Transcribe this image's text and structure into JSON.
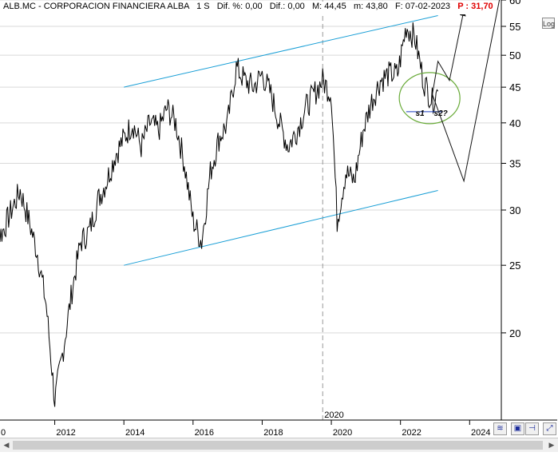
{
  "header": {
    "ticker": "ALB.MC - CORPORACION FINANCIERA ALBA",
    "timeframe": "1 S",
    "dif_pct": "Dif. %: 0,00",
    "dif": "Dif.: 0,00",
    "max": "M: 44,45",
    "min": "m: 43,80",
    "date": "F: 07-02-2023",
    "price": "P : 31,70",
    "price_color": "#e00000"
  },
  "toolbar": {
    "log_button": "Log"
  },
  "annotations": {
    "s1": "s1",
    "s2": "s2?"
  },
  "colors": {
    "channel": "#1a9fd6",
    "support": "#1a3fbf",
    "ellipse": "#6aab3a",
    "price": "#000000",
    "arrows": "#111111",
    "grid": "#d9d9d9"
  },
  "icons": [
    "fit-icon",
    "save-icon",
    "pin-icon",
    "expand-icon"
  ],
  "chart_data": {
    "type": "line",
    "title": "ALB.MC - CORPORACION FINANCIERA ALBA",
    "y_scale": "log",
    "ylim": [
      15,
      60
    ],
    "xlim": [
      "2010-01",
      "2024-12"
    ],
    "y_ticks": [
      20,
      25,
      30,
      35,
      40,
      45,
      50,
      55,
      60
    ],
    "x_ticks": [
      "0",
      "2012",
      "2014",
      "2016",
      "2018",
      "2020",
      "2022",
      "2024"
    ],
    "grid": true,
    "legend": "none",
    "vertical_marker": {
      "date": "2019-10",
      "label": "2020"
    },
    "series": [
      {
        "x": [
          "2010-01",
          "2010-04",
          "2010-07",
          "2010-10",
          "2011-01",
          "2011-04",
          "2011-07",
          "2011-10",
          "2012-01",
          "2012-04",
          "2012-07",
          "2012-10",
          "2013-01",
          "2013-04",
          "2013-07",
          "2013-10",
          "2014-01",
          "2014-04",
          "2014-07",
          "2014-10",
          "2015-01",
          "2015-04",
          "2015-07",
          "2015-10",
          "2016-01",
          "2016-04",
          "2016-07",
          "2016-10",
          "2017-01",
          "2017-04",
          "2017-07",
          "2017-10",
          "2018-01",
          "2018-04",
          "2018-07",
          "2018-10",
          "2019-01",
          "2019-04",
          "2019-07",
          "2019-10",
          "2020-01",
          "2020-03",
          "2020-06",
          "2020-09",
          "2020-12",
          "2021-03",
          "2021-06",
          "2021-09",
          "2021-12",
          "2022-03",
          "2022-06",
          "2022-09",
          "2022-12",
          "2023-02"
        ],
        "values": [
          22,
          27,
          28,
          30,
          32,
          29,
          26,
          22,
          16,
          19,
          23,
          27,
          28,
          31,
          33,
          36,
          38,
          40,
          37,
          40,
          39,
          42,
          40,
          35,
          29,
          27,
          34,
          38,
          40,
          48,
          46,
          45,
          47,
          44,
          40,
          37,
          39,
          42,
          44,
          46,
          44,
          29,
          34,
          33,
          39,
          43,
          46,
          47,
          47,
          55,
          53,
          46,
          43,
          44.4
        ]
      }
    ],
    "channel": {
      "upper": {
        "from": {
          "x": "2014-01",
          "y": 45
        },
        "to": {
          "x": "2023-02",
          "y": 57
        }
      },
      "lower": {
        "from": {
          "x": "2014-01",
          "y": 25
        },
        "to": {
          "x": "2023-02",
          "y": 32
        }
      }
    },
    "support_line": {
      "y": 41.5,
      "from": "2022-03",
      "to": "2023-02"
    },
    "projections": [
      {
        "points": [
          {
            "x": "2022-12",
            "y": 43.8
          },
          {
            "x": "2023-02",
            "y": 49
          },
          {
            "x": "2023-06",
            "y": 46
          },
          {
            "x": "2023-11",
            "y": 58
          }
        ]
      },
      {
        "points": [
          {
            "x": "2022-12",
            "y": 44
          },
          {
            "x": "2023-11",
            "y": 33
          },
          {
            "x": "2024-12",
            "y": 62
          }
        ]
      }
    ]
  }
}
